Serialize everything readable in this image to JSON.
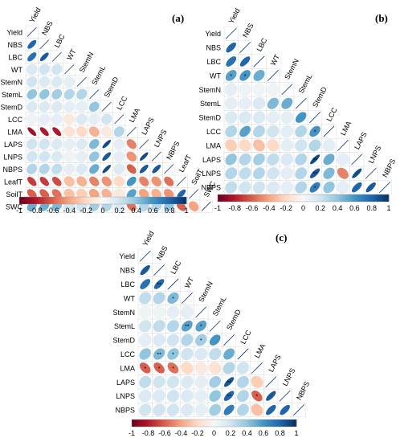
{
  "panels": [
    {
      "label": "(a)",
      "variables": [
        "Yield",
        "NBS",
        "LBC",
        "WT",
        "StemN",
        "StemL",
        "StemD",
        "LCC",
        "LMA",
        "LAPS",
        "LNPS",
        "NBPS",
        "LeafT",
        "SoilT",
        "SWC"
      ],
      "colorbar_ticks": [
        "-1",
        "-0.8",
        "-0.6",
        "-0.4",
        "-0.2",
        "0",
        "0.2",
        "0.4",
        "0.6",
        "0.8",
        "1"
      ],
      "significant_marks": []
    },
    {
      "label": "(b)",
      "variables": [
        "Yield",
        "NBS",
        "LBC",
        "WT",
        "StemN",
        "StemL",
        "StemD",
        "LCC",
        "LMA",
        "LAPS",
        "LNPS",
        "NBPS"
      ],
      "colorbar_ticks": [
        "-1",
        "-0.8",
        "-0.6",
        "-0.4",
        "-0.2",
        "0",
        "0.2",
        "0.4",
        "0.6",
        "0.8",
        "1"
      ],
      "significant_marks": [
        "*",
        "**"
      ]
    },
    {
      "label": "(c)",
      "variables": [
        "Yield",
        "NBS",
        "LBC",
        "WT",
        "StemN",
        "StemL",
        "StemD",
        "LCC",
        "LMA",
        "LAPS",
        "LNPS",
        "NBPS"
      ],
      "colorbar_ticks": [
        "-1",
        "-0.8",
        "-0.6",
        "-0.4",
        "-0.2",
        "0",
        "0.2",
        "0.4",
        "0.6",
        "0.8",
        "1"
      ],
      "significant_marks": [
        "*",
        "**"
      ]
    }
  ],
  "chart_data": [
    {
      "type": "heatmap",
      "title": "(a)",
      "variables": [
        "Yield",
        "NBS",
        "LBC",
        "WT",
        "StemN",
        "StemL",
        "StemD",
        "LCC",
        "LMA",
        "LAPS",
        "LNPS",
        "NBPS",
        "LeafT",
        "SoilT",
        "SWC"
      ],
      "value_range": [
        -1,
        1
      ],
      "lower_triangle": [
        [],
        [
          0.8
        ],
        [
          0.75,
          0.85
        ],
        [
          0.15,
          0.2,
          0.2
        ],
        [
          0.2,
          0.15,
          0.15,
          0.1
        ],
        [
          0.4,
          0.4,
          0.35,
          0.3,
          0.3
        ],
        [
          0.15,
          0.15,
          0.15,
          0.1,
          0.1,
          0.4
        ],
        [
          0.05,
          0.1,
          0.1,
          -0.1,
          0.15,
          0.1,
          0.2
        ],
        [
          -0.85,
          -0.8,
          -0.8,
          -0.15,
          -0.2,
          -0.35,
          -0.1,
          0.3
        ],
        [
          0.2,
          0.2,
          0.15,
          0.1,
          0.15,
          0.45,
          0.9,
          0.1,
          -0.5
        ],
        [
          0.2,
          0.2,
          0.15,
          0.05,
          0.1,
          0.4,
          0.85,
          0.1,
          -0.45,
          0.9
        ],
        [
          0.3,
          0.3,
          0.25,
          0.1,
          0.15,
          0.5,
          0.9,
          0.15,
          -0.6,
          0.85,
          0.85
        ],
        [
          -0.7,
          -0.7,
          -0.65,
          -0.3,
          -0.35,
          -0.5,
          -0.45,
          -0.2,
          0.6,
          -0.5,
          -0.45,
          -0.55
        ],
        [
          -0.6,
          -0.6,
          -0.55,
          -0.3,
          -0.25,
          -0.4,
          -0.35,
          -0.1,
          0.55,
          -0.4,
          -0.35,
          -0.45,
          0.8
        ],
        [
          0.5,
          0.5,
          0.45,
          0.2,
          0.2,
          0.35,
          0.3,
          0.15,
          -0.55,
          0.3,
          0.3,
          0.4,
          -0.6,
          -0.4
        ]
      ]
    },
    {
      "type": "heatmap",
      "title": "(b)",
      "variables": [
        "Yield",
        "NBS",
        "LBC",
        "WT",
        "StemN",
        "StemL",
        "StemD",
        "LCC",
        "LMA",
        "LAPS",
        "LNPS",
        "NBPS"
      ],
      "value_range": [
        -1,
        1
      ],
      "lower_triangle": [
        [],
        [
          0.8
        ],
        [
          0.75,
          0.8
        ],
        [
          0.55,
          0.6,
          0.5
        ],
        [
          0.1,
          0.05,
          0.05,
          0.05
        ],
        [
          0.1,
          0.1,
          0.15,
          0.45,
          0.5
        ],
        [
          0.15,
          0.15,
          0.15,
          0.1,
          0.1,
          0.6
        ],
        [
          0.3,
          0.55,
          0.3,
          0.2,
          0.1,
          0.3,
          0.6
        ],
        [
          -0.25,
          -0.2,
          -0.3,
          -0.2,
          0.1,
          0.2,
          0.3,
          0.1
        ],
        [
          0.4,
          0.3,
          0.35,
          0.25,
          0.15,
          0.3,
          0.9,
          0.5,
          0.1
        ],
        [
          0.3,
          0.25,
          0.3,
          0.2,
          0.1,
          0.3,
          0.85,
          0.45,
          -0.5,
          0.9
        ],
        [
          0.25,
          0.2,
          0.2,
          0.15,
          0.1,
          0.3,
          0.7,
          0.4,
          0.1,
          0.8,
          0.85
        ]
      ],
      "significant": [
        [
          3,
          1,
          "*"
        ],
        [
          7,
          6,
          "*"
        ],
        [
          9,
          6,
          "**"
        ],
        [
          10,
          6,
          "**"
        ],
        [
          11,
          6,
          "*"
        ],
        [
          3,
          0,
          "*"
        ]
      ]
    },
    {
      "type": "heatmap",
      "title": "(c)",
      "variables": [
        "Yield",
        "NBS",
        "LBC",
        "WT",
        "StemN",
        "StemL",
        "StemD",
        "LCC",
        "LMA",
        "LAPS",
        "LNPS",
        "NBPS"
      ],
      "value_range": [
        -1,
        1
      ],
      "lower_triangle": [
        [],
        [
          0.85
        ],
        [
          0.75,
          0.8
        ],
        [
          0.25,
          0.3,
          0.45
        ],
        [
          0.05,
          0.05,
          0.1,
          0.1
        ],
        [
          0.2,
          0.25,
          0.3,
          0.55,
          0.55
        ],
        [
          0.1,
          0.15,
          0.2,
          0.3,
          0.35,
          0.6
        ],
        [
          0.4,
          0.45,
          0.4,
          0.2,
          0.15,
          0.25,
          0.5
        ],
        [
          -0.6,
          -0.6,
          -0.55,
          -0.2,
          -0.1,
          -0.15,
          0.3,
          0.2
        ],
        [
          0.25,
          0.2,
          0.2,
          0.15,
          0.1,
          0.35,
          0.85,
          0.3,
          -0.25
        ],
        [
          0.15,
          0.15,
          0.2,
          0.15,
          0.1,
          0.4,
          0.8,
          0.3,
          -0.6,
          0.85
        ],
        [
          0.2,
          0.2,
          0.2,
          0.15,
          0.1,
          0.35,
          0.7,
          0.3,
          -0.3,
          0.8,
          0.8
        ]
      ],
      "significant": [
        [
          2,
          1,
          "**"
        ],
        [
          3,
          2,
          "*"
        ],
        [
          5,
          3,
          "**"
        ],
        [
          5,
          4,
          "*"
        ],
        [
          6,
          4,
          "*"
        ],
        [
          7,
          1,
          "**"
        ],
        [
          7,
          2,
          "*"
        ],
        [
          8,
          0,
          "*"
        ],
        [
          8,
          1,
          "*"
        ],
        [
          8,
          2,
          "*"
        ],
        [
          9,
          6,
          "**"
        ],
        [
          10,
          6,
          "**"
        ],
        [
          10,
          8,
          "*"
        ]
      ]
    }
  ]
}
